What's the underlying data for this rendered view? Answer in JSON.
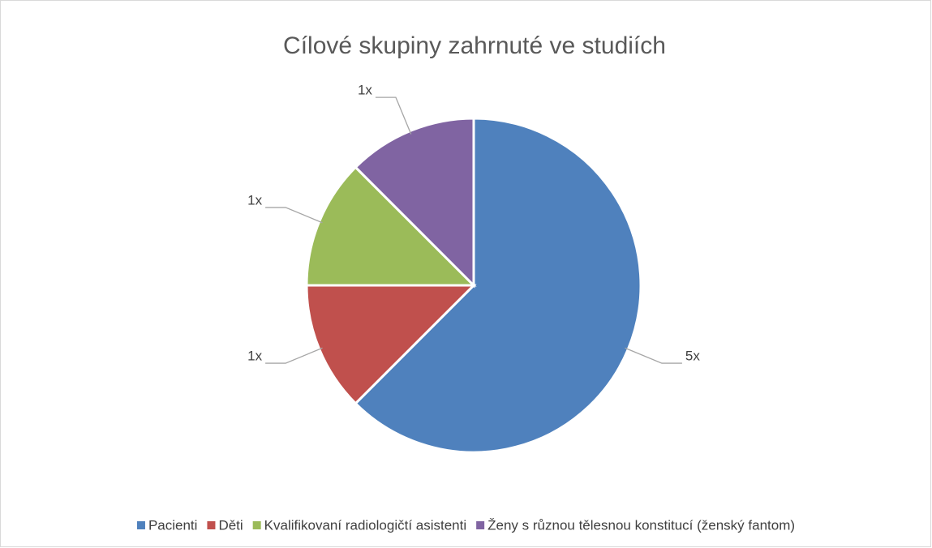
{
  "chart_data": {
    "type": "pie",
    "title": "Cílové skupiny zahrnuté ve studiích",
    "categories": [
      "Pacienti",
      "Děti",
      "Kvalifikovaní radiologičtí asistenti",
      "Ženy s různou tělesnou konstitucí (ženský fantom)"
    ],
    "values": [
      5,
      1,
      1,
      1
    ],
    "value_labels": [
      "5x",
      "1x",
      "1x",
      "1x"
    ],
    "colors": [
      "#4f81bd",
      "#c0504d",
      "#9bbb59",
      "#8064a2"
    ],
    "legend": "bottom"
  }
}
